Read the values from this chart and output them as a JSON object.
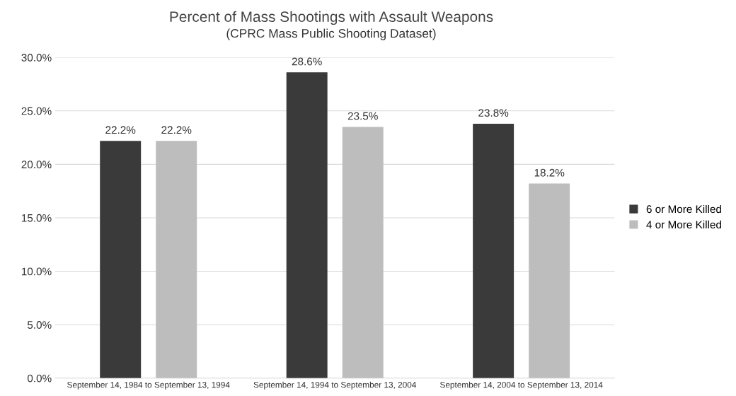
{
  "chart_data": {
    "type": "bar",
    "title": "Percent of Mass Shootings with Assault Weapons",
    "subtitle": "(CPRC Mass Public Shooting Dataset)",
    "categories": [
      "September 14, 1984 to September 13, 1994",
      "September 14, 1994 to September 13, 2004",
      "September 14, 2004 to September 13, 2014"
    ],
    "series": [
      {
        "name": "6 or More Killed",
        "color": "#3a3a3a",
        "values": [
          22.2,
          28.6,
          23.8
        ],
        "value_labels": [
          "22.2%",
          "28.6%",
          "23.8%"
        ]
      },
      {
        "name": "4 or More Killed",
        "color": "#bdbdbd",
        "values": [
          22.2,
          23.5,
          18.2
        ],
        "value_labels": [
          "22.2%",
          "23.5%",
          "18.2%"
        ]
      }
    ],
    "ylim": [
      0,
      30
    ],
    "yticks": [
      {
        "value": 0,
        "label": "0.0%"
      },
      {
        "value": 5,
        "label": "5.0%"
      },
      {
        "value": 10,
        "label": "10.0%"
      },
      {
        "value": 15,
        "label": "15.0%"
      },
      {
        "value": 20,
        "label": "20.0%"
      },
      {
        "value": 25,
        "label": "25.0%"
      },
      {
        "value": 30,
        "label": "30.0%"
      }
    ],
    "grid": "y",
    "legend": "right"
  }
}
